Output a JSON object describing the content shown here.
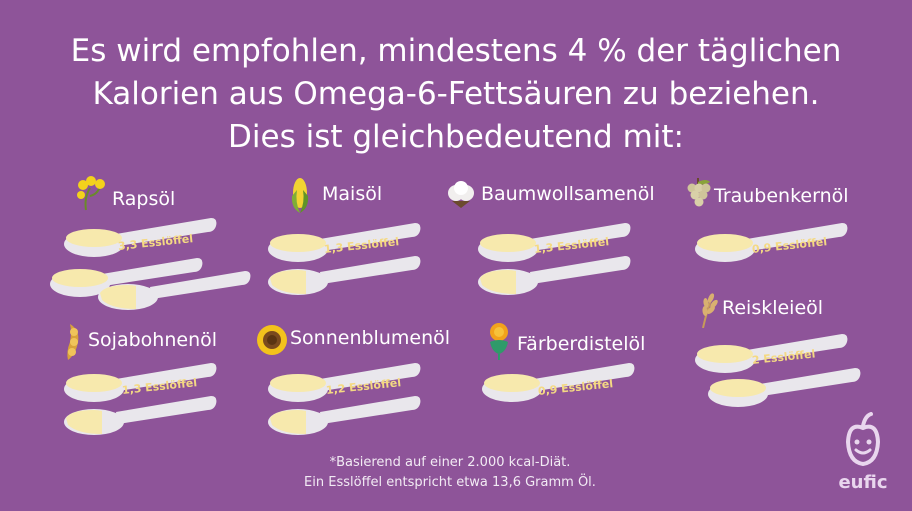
{
  "title_lines": [
    "Es wird empfohlen, mindestens 4 % der täglichen",
    "Kalorien aus Omega-6-Fettsäuren zu beziehen.",
    "Dies ist gleichbedeutend mit:"
  ],
  "oils": [
    {
      "name": "Rapsöl",
      "amount": "3,3 Esslöffel",
      "icon": "rapeseed-flower-icon"
    },
    {
      "name": "Maisöl",
      "amount": "1,3 Esslöffel",
      "icon": "corn-icon"
    },
    {
      "name": "Baumwollsamenöl",
      "amount": "1,3 Esslöffel",
      "icon": "cotton-boll-icon"
    },
    {
      "name": "Traubenkernöl",
      "amount": "0,9 Esslöffel",
      "icon": "grapes-icon"
    },
    {
      "name": "Sojabohnenöl",
      "amount": "1,3 Esslöffel",
      "icon": "soybean-pod-icon"
    },
    {
      "name": "Sonnenblumenöl",
      "amount": "1,2 Esslöffel",
      "icon": "sunflower-icon"
    },
    {
      "name": "Färberdistelöl",
      "amount": "0,9 Esslöffel",
      "icon": "safflower-icon"
    },
    {
      "name": "Reiskleieöl",
      "amount": "2 Esslöffel",
      "icon": "rice-stalk-icon"
    }
  ],
  "footnote": [
    "*Basierend auf einer 2.000 kcal-Diät.",
    "Ein Esslöffel entspricht etwa 13,6 Gramm Öl."
  ],
  "logo": {
    "text": "eufic",
    "icon": "apple-face-icon"
  },
  "colors": {
    "background": "#8e5499",
    "oil": "#f7e9ad",
    "spoon": "#e9e7ec",
    "amount_text": "#f4d983"
  }
}
